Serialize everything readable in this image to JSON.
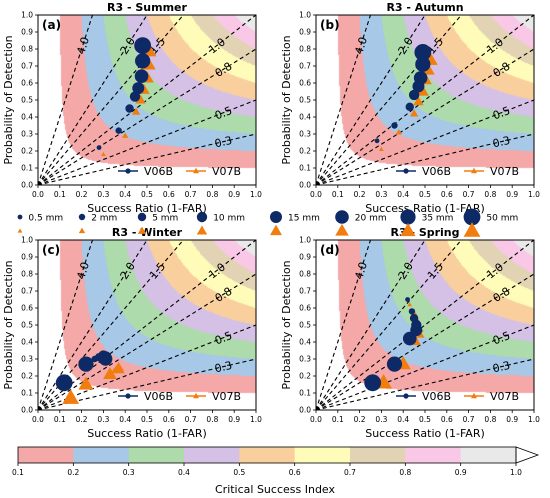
{
  "chart_data": [
    {
      "type": "scatter",
      "panel_label": "(a)",
      "title": "R3 - Summer",
      "xlabel": "Success Ratio (1-FAR)",
      "ylabel": "Probability of Detection",
      "xlim": [
        0,
        1
      ],
      "ylim": [
        0,
        1
      ],
      "series": [
        {
          "name": "V06B",
          "x": [
            0.28,
            0.37,
            0.42,
            0.445,
            0.46,
            0.475,
            0.48,
            0.48
          ],
          "y": [
            0.22,
            0.32,
            0.45,
            0.52,
            0.57,
            0.64,
            0.73,
            0.82
          ]
        },
        {
          "name": "V07B",
          "x": [
            0.3,
            0.4,
            0.45,
            0.47,
            0.485,
            0.5,
            0.505,
            0.505
          ],
          "y": [
            0.18,
            0.29,
            0.43,
            0.5,
            0.56,
            0.63,
            0.71,
            0.79
          ]
        }
      ]
    },
    {
      "type": "scatter",
      "panel_label": "(b)",
      "title": "R3 - Autumn",
      "xlabel": "Success Ratio (1-FAR)",
      "ylabel": "Probability of Detection",
      "xlim": [
        0,
        1
      ],
      "ylim": [
        0,
        1
      ],
      "series": [
        {
          "name": "V06B",
          "x": [
            0.28,
            0.36,
            0.43,
            0.45,
            0.47,
            0.48,
            0.49,
            0.49
          ],
          "y": [
            0.26,
            0.35,
            0.46,
            0.53,
            0.58,
            0.63,
            0.71,
            0.78
          ]
        },
        {
          "name": "V07B",
          "x": [
            0.3,
            0.38,
            0.45,
            0.47,
            0.49,
            0.5,
            0.51,
            0.52
          ],
          "y": [
            0.21,
            0.31,
            0.42,
            0.49,
            0.55,
            0.62,
            0.68,
            0.74
          ]
        }
      ]
    },
    {
      "type": "scatter",
      "panel_label": "(c)",
      "title": "R3 - Winter",
      "xlabel": "Success Ratio (1-FAR)",
      "ylabel": "Probability of Detection",
      "xlim": [
        0,
        1
      ],
      "ylim": [
        0,
        1
      ],
      "series": [
        {
          "name": "V06B",
          "x": [
            0.24,
            0.26,
            0.28,
            0.3,
            0.31,
            0.31,
            0.22,
            0.12
          ],
          "y": [
            0.26,
            0.3,
            0.31,
            0.32,
            0.31,
            0.3,
            0.27,
            0.16
          ]
        },
        {
          "name": "V07B",
          "x": [
            0.33,
            0.35,
            0.36,
            0.37,
            0.37,
            0.33,
            0.22,
            0.15
          ],
          "y": [
            0.21,
            0.23,
            0.24,
            0.25,
            0.24,
            0.21,
            0.15,
            0.07
          ]
        }
      ]
    },
    {
      "type": "scatter",
      "panel_label": "(d)",
      "title": "R3 - Spring",
      "xlabel": "Success Ratio (1-FAR)",
      "ylabel": "Probability of Detection",
      "xlim": [
        0,
        1
      ],
      "ylim": [
        0,
        1
      ],
      "series": [
        {
          "name": "V06B",
          "x": [
            0.42,
            0.44,
            0.45,
            0.46,
            0.46,
            0.43,
            0.36,
            0.26
          ],
          "y": [
            0.65,
            0.58,
            0.54,
            0.5,
            0.47,
            0.42,
            0.27,
            0.16
          ]
        },
        {
          "name": "V07B",
          "x": [
            0.43,
            0.45,
            0.46,
            0.47,
            0.47,
            0.45,
            0.4,
            0.31
          ],
          "y": [
            0.62,
            0.57,
            0.53,
            0.48,
            0.45,
            0.41,
            0.27,
            0.16
          ]
        }
      ]
    }
  ],
  "common": {
    "xticks": [
      "0.0",
      "0.1",
      "0.2",
      "0.3",
      "0.4",
      "0.5",
      "0.6",
      "0.7",
      "0.8",
      "0.9",
      "1.0"
    ],
    "yticks": [
      "0.0",
      "0.1",
      "0.2",
      "0.3",
      "0.4",
      "0.5",
      "0.6",
      "0.7",
      "0.8",
      "0.9",
      "1.0"
    ],
    "bias_lines": [
      {
        "value": 4.0,
        "label": "4.0"
      },
      {
        "value": 2.0,
        "label": "2.0"
      },
      {
        "value": 1.5,
        "label": "1.5"
      },
      {
        "value": 1.0,
        "label": "1.0"
      },
      {
        "value": 0.8,
        "label": "0.8"
      },
      {
        "value": 0.5,
        "label": "0.5"
      },
      {
        "value": 0.3,
        "label": "0.3"
      }
    ],
    "csi_levels": [
      0.1,
      0.2,
      0.3,
      0.4,
      0.5,
      0.6,
      0.7,
      0.8,
      0.9,
      1.0
    ],
    "csi_colors": [
      "#f4a8a8",
      "#a7c8e6",
      "#aedbab",
      "#d4c1e5",
      "#f9cf9e",
      "#fefcb8",
      "#e2d3b5",
      "#f8c8e6",
      "#e9e9e9"
    ],
    "series_colors": {
      "V06B": "#0d2a66",
      "V07B": "#f07d0e"
    }
  },
  "threshold_legend": {
    "labels": [
      "0.5 mm",
      "2 mm",
      "5 mm",
      "10 mm",
      "15 mm",
      "20 mm",
      "35 mm",
      "50 mm"
    ],
    "marker_sizes": [
      2.4,
      3.2,
      4.2,
      5.2,
      6.0,
      6.8,
      7.6,
      8.4
    ]
  },
  "colorbar": {
    "label": "Critical Success Index",
    "ticks": [
      "0.1",
      "0.2",
      "0.3",
      "0.4",
      "0.5",
      "0.6",
      "0.7",
      "0.8",
      "0.9",
      "1.0"
    ]
  }
}
